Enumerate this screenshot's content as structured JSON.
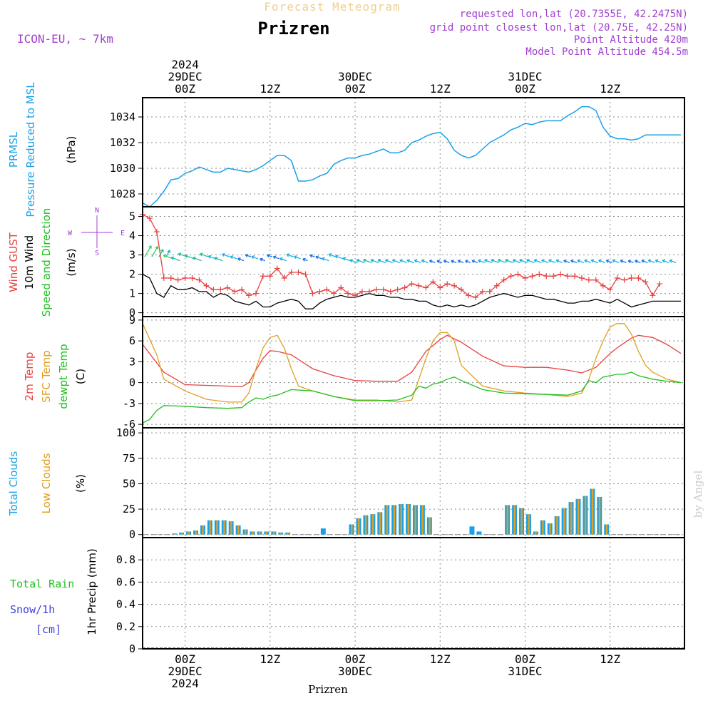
{
  "header": {
    "super_title": "Forecast Meteogram",
    "station": "Prizren",
    "model": "ICON-EU, ~ 7km",
    "requested": "requested lon,lat (20.7355E, 42.2475N)",
    "grid_point": "grid point closest lon,lat (20.75E, 42.25N)",
    "point_alt": "Point Altitude 420m",
    "model_alt": "Model Point Altitude 454.5m",
    "footer_station": "Prizren",
    "watermark": "by Angel"
  },
  "colors": {
    "pressure": "#1aa0e6",
    "gust": "#e84040",
    "wind": "#000000",
    "t2m": "#e84040",
    "sfc": "#e0a020",
    "dewpt": "#20c020",
    "clouds_total": "#1aa0e6",
    "clouds_low": "#e0a020",
    "rain": "#20c020",
    "snow": "#4040e0",
    "label_purple": "#a040d0",
    "grid": "#888888"
  },
  "time_axis": {
    "top_labels": [
      {
        "t": 6,
        "lines": [
          "2024",
          "29DEC",
          "00Z"
        ]
      },
      {
        "t": 18,
        "lines": [
          "12Z"
        ]
      },
      {
        "t": 30,
        "lines": [
          "30DEC",
          "00Z"
        ]
      },
      {
        "t": 42,
        "lines": [
          "12Z"
        ]
      },
      {
        "t": 54,
        "lines": [
          "31DEC",
          "00Z"
        ]
      },
      {
        "t": 66,
        "lines": [
          "12Z"
        ]
      }
    ],
    "bottom_labels": [
      {
        "t": 6,
        "lines": [
          "00Z",
          "29DEC",
          "2024"
        ]
      },
      {
        "t": 18,
        "lines": [
          "12Z"
        ]
      },
      {
        "t": 30,
        "lines": [
          "00Z",
          "30DEC"
        ]
      },
      {
        "t": 42,
        "lines": [
          "12Z"
        ]
      },
      {
        "t": 54,
        "lines": [
          "00Z",
          "31DEC"
        ]
      },
      {
        "t": 66,
        "lines": [
          "12Z"
        ]
      }
    ],
    "note": "t = hours from 28DEC 18Z"
  },
  "chart_data": [
    {
      "type": "line",
      "id": "pressure",
      "labels": [
        "PRMSL",
        "Pressure Reduced to MSL",
        "(hPa)"
      ],
      "ylim": [
        1027,
        1035.5
      ],
      "yticks": [
        1028,
        1030,
        1032,
        1034
      ],
      "x": [
        0,
        1,
        2,
        3,
        4,
        5,
        6,
        7,
        8,
        9,
        10,
        11,
        12,
        13,
        14,
        15,
        16,
        17,
        18,
        19,
        20,
        21,
        22,
        23,
        24,
        25,
        26,
        27,
        28,
        29,
        30,
        31,
        32,
        33,
        34,
        35,
        36,
        37,
        38,
        39,
        40,
        41,
        42,
        43,
        44,
        45,
        46,
        47,
        48,
        49,
        50,
        51,
        52,
        53,
        54,
        55,
        56,
        57,
        58,
        59,
        60,
        61,
        62,
        63,
        64,
        65,
        66,
        67,
        68,
        69,
        70,
        71,
        72,
        73,
        74,
        75,
        76
      ],
      "y": [
        1027.3,
        1027.0,
        1027.5,
        1028.2,
        1029.1,
        1029.2,
        1029.6,
        1029.8,
        1030.1,
        1029.9,
        1029.7,
        1029.7,
        1030.0,
        1029.9,
        1029.8,
        1029.7,
        1029.9,
        1030.2,
        1030.6,
        1031.0,
        1031.0,
        1030.6,
        1029.0,
        1029.0,
        1029.1,
        1029.4,
        1029.6,
        1030.3,
        1030.6,
        1030.8,
        1030.8,
        1031.0,
        1031.1,
        1031.3,
        1031.5,
        1031.2,
        1031.2,
        1031.4,
        1032.0,
        1032.2,
        1032.5,
        1032.7,
        1032.8,
        1032.3,
        1031.4,
        1031.0,
        1030.8,
        1031.0,
        1031.5,
        1032.0,
        1032.3,
        1032.6,
        1033.0,
        1033.2,
        1033.5,
        1033.4,
        1033.6,
        1033.7,
        1033.7,
        1033.7,
        1034.1,
        1034.4,
        1034.8,
        1034.8,
        1034.5,
        1033.2,
        1032.5,
        1032.3,
        1032.3,
        1032.2,
        1032.3,
        1032.6,
        1032.6,
        1032.6,
        1032.6,
        1032.6,
        1032.6
      ]
    },
    {
      "type": "line",
      "id": "wind",
      "labels": [
        "Wind GUST",
        "10m Wind",
        "Speed and Direction",
        "(m/s)"
      ],
      "compass": {
        "n": "N",
        "s": "S",
        "w": "W",
        "e": "E"
      },
      "ylim": [
        -0.2,
        5.5
      ],
      "yticks": [
        0,
        1,
        2,
        3,
        4,
        5
      ],
      "series": [
        {
          "name": "Wind GUST",
          "x": [
            0,
            1,
            2,
            3,
            4,
            5,
            6,
            7,
            8,
            9,
            10,
            11,
            12,
            13,
            14,
            15,
            16,
            17,
            18,
            19,
            20,
            21,
            22,
            23,
            24,
            25,
            26,
            27,
            28,
            29,
            30,
            31,
            32,
            33,
            34,
            35,
            36,
            37,
            38,
            39,
            40,
            41,
            42,
            43,
            44,
            45,
            46,
            47,
            48,
            49,
            50,
            51,
            52,
            53,
            54,
            55,
            56,
            57,
            58,
            59,
            60,
            61,
            62,
            63,
            64,
            65,
            66,
            67,
            68,
            69,
            70,
            71,
            72,
            73
          ],
          "y": [
            5.1,
            4.9,
            4.2,
            1.8,
            1.8,
            1.7,
            1.8,
            1.8,
            1.7,
            1.4,
            1.2,
            1.2,
            1.3,
            1.1,
            1.2,
            0.9,
            1.0,
            1.9,
            1.9,
            2.3,
            1.8,
            2.1,
            2.1,
            2.0,
            1.0,
            1.1,
            1.2,
            1.0,
            1.3,
            1.0,
            0.9,
            1.1,
            1.1,
            1.2,
            1.2,
            1.1,
            1.2,
            1.3,
            1.5,
            1.4,
            1.3,
            1.6,
            1.3,
            1.5,
            1.4,
            1.2,
            0.9,
            0.8,
            1.1,
            1.1,
            1.4,
            1.7,
            1.9,
            2.0,
            1.8,
            1.9,
            2.0,
            1.9,
            1.9,
            2.0,
            1.9,
            1.9,
            1.8,
            1.7,
            1.7,
            1.4,
            1.2,
            1.8,
            1.7,
            1.8,
            1.8,
            1.6,
            0.9,
            1.5
          ]
        },
        {
          "name": "10m Wind",
          "x": [
            0,
            1,
            2,
            3,
            4,
            5,
            6,
            7,
            8,
            9,
            10,
            11,
            12,
            13,
            14,
            15,
            16,
            17,
            18,
            19,
            20,
            21,
            22,
            23,
            24,
            25,
            26,
            27,
            28,
            29,
            30,
            31,
            32,
            33,
            34,
            35,
            36,
            37,
            38,
            39,
            40,
            41,
            42,
            43,
            44,
            45,
            46,
            47,
            48,
            49,
            50,
            51,
            52,
            53,
            54,
            55,
            56,
            57,
            58,
            59,
            60,
            61,
            62,
            63,
            64,
            65,
            66,
            67,
            68,
            69,
            70,
            71,
            72,
            73,
            74,
            75,
            76
          ],
          "y": [
            2.0,
            1.8,
            1.0,
            0.8,
            1.4,
            1.2,
            1.2,
            1.3,
            1.1,
            1.1,
            0.8,
            1.0,
            0.9,
            0.6,
            0.5,
            0.4,
            0.6,
            0.3,
            0.3,
            0.5,
            0.6,
            0.7,
            0.6,
            0.2,
            0.2,
            0.5,
            0.7,
            0.8,
            0.9,
            0.8,
            0.8,
            0.9,
            1.0,
            0.9,
            0.9,
            0.8,
            0.8,
            0.7,
            0.7,
            0.6,
            0.6,
            0.4,
            0.3,
            0.4,
            0.3,
            0.4,
            0.3,
            0.4,
            0.6,
            0.8,
            0.9,
            1.0,
            0.9,
            0.8,
            0.9,
            0.9,
            0.8,
            0.7,
            0.7,
            0.6,
            0.5,
            0.5,
            0.6,
            0.6,
            0.7,
            0.6,
            0.5,
            0.7,
            0.5,
            0.3,
            0.4,
            0.5,
            0.6,
            0.6,
            0.6,
            0.6,
            0.6
          ]
        }
      ],
      "arrows_note": "direction barbs: mostly from east/southeast, colored by speed"
    },
    {
      "type": "line",
      "id": "temperature",
      "labels": [
        "2m Temp",
        "SFC Temp",
        "dewpt Temp",
        "(C)"
      ],
      "ylim": [
        -6.5,
        9.5
      ],
      "yticks": [
        -6,
        -3,
        0,
        3,
        6,
        9
      ],
      "series": [
        {
          "name": "2m Temp",
          "x": [
            0,
            3,
            6,
            9,
            12,
            14,
            15,
            16,
            17,
            18,
            19,
            21,
            24,
            27,
            30,
            33,
            36,
            38,
            40,
            42,
            43,
            45,
            48,
            51,
            54,
            57,
            60,
            62,
            64,
            66,
            67,
            69,
            70,
            72,
            74,
            76
          ],
          "y": [
            5.5,
            1.5,
            -0.3,
            -0.4,
            -0.5,
            -0.6,
            0.0,
            1.8,
            3.5,
            4.6,
            4.5,
            4.0,
            2.0,
            1.0,
            0.3,
            0.2,
            0.2,
            1.5,
            4.5,
            6.2,
            6.8,
            5.8,
            3.8,
            2.4,
            2.2,
            2.2,
            1.8,
            1.4,
            2.2,
            4.2,
            5.0,
            6.4,
            6.8,
            6.5,
            5.5,
            4.2
          ]
        },
        {
          "name": "SFC Temp",
          "x": [
            0,
            2,
            3,
            6,
            9,
            12,
            14,
            15,
            16,
            17,
            18,
            19,
            20,
            21,
            22,
            24,
            27,
            30,
            33,
            36,
            38,
            39,
            40,
            41,
            42,
            43,
            44,
            45,
            48,
            51,
            54,
            57,
            60,
            62,
            63,
            64,
            65,
            66,
            67,
            68,
            69,
            70,
            71,
            72,
            74,
            76
          ],
          "y": [
            8.5,
            4.0,
            0.5,
            -1.2,
            -2.4,
            -2.8,
            -2.8,
            -1.5,
            2.0,
            5.0,
            6.5,
            6.8,
            5.0,
            2.0,
            -0.5,
            -1.2,
            -2.0,
            -2.5,
            -2.5,
            -2.8,
            -2.5,
            0.5,
            3.5,
            6.0,
            7.2,
            7.2,
            6.0,
            2.5,
            -0.5,
            -1.2,
            -1.5,
            -1.7,
            -2.0,
            -1.5,
            0.5,
            3.5,
            6.0,
            8.0,
            8.5,
            8.5,
            7.0,
            4.5,
            2.5,
            1.5,
            0.5,
            0.0
          ]
        },
        {
          "name": "dewpt Temp",
          "x": [
            0,
            1,
            2,
            3,
            6,
            9,
            12,
            14,
            15,
            16,
            17,
            18,
            19,
            21,
            24,
            27,
            30,
            33,
            36,
            38,
            39,
            40,
            41,
            42,
            43,
            44,
            45,
            48,
            51,
            54,
            57,
            60,
            62,
            63,
            64,
            65,
            66,
            67,
            68,
            69,
            70,
            72,
            74,
            76
          ],
          "y": [
            -5.8,
            -5.3,
            -4.0,
            -3.3,
            -3.4,
            -3.6,
            -3.7,
            -3.6,
            -2.8,
            -2.2,
            -2.4,
            -2.0,
            -1.8,
            -1.0,
            -1.2,
            -2.0,
            -2.6,
            -2.6,
            -2.5,
            -1.8,
            -0.5,
            -0.8,
            -0.2,
            0.0,
            0.5,
            0.8,
            0.3,
            -1.0,
            -1.5,
            -1.6,
            -1.7,
            -1.8,
            -1.2,
            0.3,
            0.0,
            0.8,
            1.0,
            1.2,
            1.2,
            1.5,
            1.0,
            0.5,
            0.2,
            0.0
          ]
        }
      ]
    },
    {
      "type": "bar",
      "id": "clouds",
      "labels": [
        "Total Clouds",
        "Low Clouds",
        "(%)"
      ],
      "ylim": [
        -3,
        105
      ],
      "yticks": [
        0,
        25,
        50,
        75,
        100
      ],
      "x": [
        0,
        1,
        2,
        3,
        4,
        5,
        6,
        7,
        8,
        9,
        10,
        11,
        12,
        13,
        14,
        15,
        16,
        17,
        18,
        19,
        20,
        21,
        22,
        23,
        24,
        25,
        26,
        27,
        28,
        29,
        30,
        31,
        32,
        33,
        34,
        35,
        36,
        37,
        38,
        39,
        40,
        41,
        42,
        43,
        44,
        45,
        46,
        47,
        48,
        49,
        50,
        51,
        52,
        53,
        54,
        55,
        56,
        57,
        58,
        59,
        60,
        61,
        62,
        63,
        64,
        65,
        66,
        67,
        68,
        69,
        70,
        71,
        72,
        73,
        74,
        75
      ],
      "series": [
        {
          "name": "Total Clouds",
          "values": [
            0,
            0,
            0,
            0,
            1,
            2,
            3,
            4,
            9,
            14,
            14,
            14,
            13,
            9,
            5,
            3,
            3,
            3,
            3,
            2,
            2,
            0,
            0,
            0,
            0,
            6,
            0,
            0,
            0,
            10,
            16,
            19,
            20,
            22,
            29,
            29,
            30,
            30,
            29,
            29,
            17,
            0,
            0,
            0,
            0,
            0,
            8,
            3,
            0,
            0,
            0,
            29,
            29,
            26,
            20,
            3,
            14,
            11,
            18,
            26,
            32,
            35,
            38,
            45,
            37,
            10,
            0,
            0,
            0,
            0,
            0,
            0,
            0,
            0,
            0,
            0
          ]
        },
        {
          "name": "Low Clouds",
          "values": [
            0,
            0,
            0,
            0,
            1,
            2,
            3,
            4,
            9,
            14,
            14,
            14,
            13,
            9,
            5,
            3,
            3,
            3,
            3,
            2,
            2,
            0,
            0,
            0,
            0,
            0,
            0,
            0,
            0,
            10,
            16,
            19,
            20,
            22,
            29,
            29,
            30,
            30,
            29,
            29,
            17,
            0,
            0,
            0,
            0,
            0,
            0,
            0,
            0,
            0,
            0,
            29,
            29,
            26,
            20,
            3,
            14,
            11,
            18,
            26,
            32,
            35,
            38,
            45,
            37,
            10,
            0,
            0,
            0,
            0,
            0,
            0,
            0,
            0,
            0,
            0
          ]
        }
      ]
    },
    {
      "type": "bar",
      "id": "precip",
      "labels": [
        "Total Rain",
        "Snow/1h",
        "[cm]",
        "1hr Precip (mm)"
      ],
      "ylim": [
        0,
        1.0
      ],
      "yticks": [
        0,
        0.2,
        0.4,
        0.6,
        0.8
      ],
      "x": [],
      "series": [
        {
          "name": "Total Rain",
          "values": []
        },
        {
          "name": "Snow/1h",
          "values": []
        }
      ]
    }
  ]
}
